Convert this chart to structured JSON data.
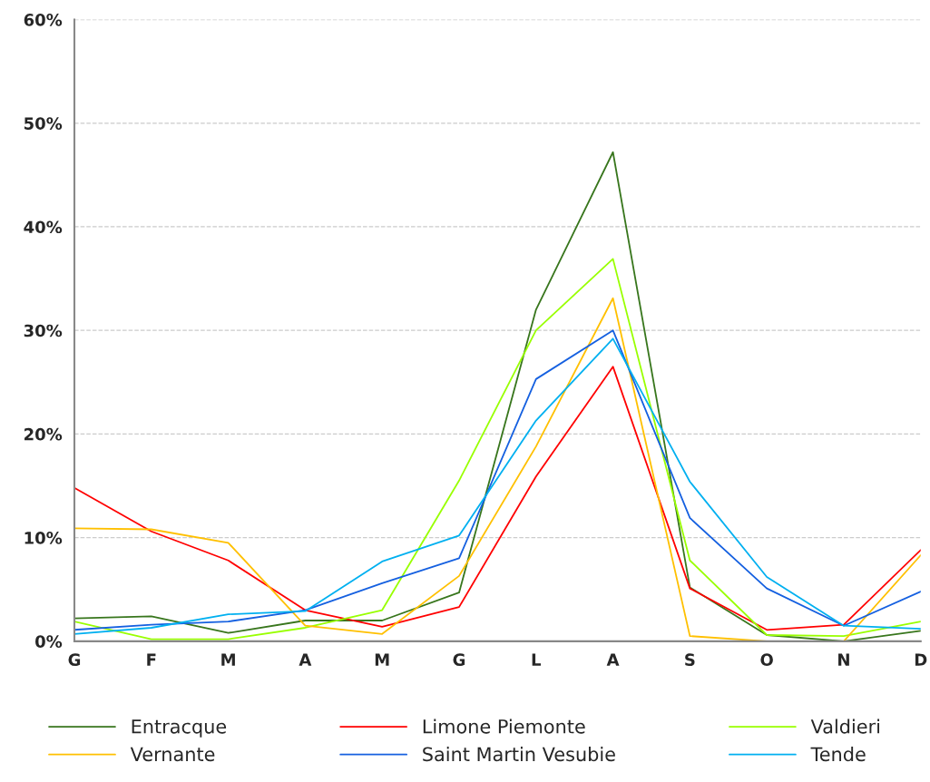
{
  "chart_data": {
    "type": "line",
    "categories": [
      "G",
      "F",
      "M",
      "A",
      "M",
      "G",
      "L",
      "A",
      "S",
      "O",
      "N",
      "D"
    ],
    "series": [
      {
        "name": "Entracque",
        "color": "#38761d",
        "values": [
          2.2,
          2.4,
          0.8,
          2.0,
          2.0,
          4.7,
          32.0,
          47.2,
          5.2,
          0.6,
          0.0,
          1.0
        ]
      },
      {
        "name": "Limone Piemonte",
        "color": "#ff0000",
        "values": [
          14.8,
          10.6,
          7.8,
          3.0,
          1.4,
          3.3,
          15.9,
          26.5,
          5.1,
          1.1,
          1.6,
          8.8
        ]
      },
      {
        "name": "Valdieri",
        "color": "#99ff00",
        "values": [
          1.9,
          0.2,
          0.2,
          1.3,
          3.0,
          15.5,
          30.0,
          36.9,
          7.8,
          0.6,
          0.5,
          1.9
        ]
      },
      {
        "name": "Vernante",
        "color": "#ffc000",
        "values": [
          10.9,
          10.8,
          9.5,
          1.5,
          0.7,
          6.3,
          18.8,
          33.1,
          0.5,
          0.0,
          0.0,
          8.3
        ]
      },
      {
        "name": "Saint Martin Vesubie",
        "color": "#1560e0",
        "values": [
          1.1,
          1.6,
          1.9,
          3.0,
          5.6,
          8.0,
          25.3,
          30.0,
          11.9,
          5.1,
          1.5,
          4.8
        ]
      },
      {
        "name": "Tende",
        "color": "#00b0f0",
        "values": [
          0.7,
          1.3,
          2.6,
          2.9,
          7.7,
          10.2,
          21.3,
          29.2,
          15.4,
          6.2,
          1.5,
          1.2
        ]
      }
    ],
    "ylim": [
      0,
      60
    ],
    "yticks": [
      {
        "value": 0,
        "label": "0%"
      },
      {
        "value": 10,
        "label": "10%"
      },
      {
        "value": 20,
        "label": "20%"
      },
      {
        "value": 30,
        "label": "30%"
      },
      {
        "value": 40,
        "label": "40%"
      },
      {
        "value": 50,
        "label": "50%"
      },
      {
        "value": 60,
        "label": "60%"
      }
    ],
    "grid": "y",
    "legend": "bottom",
    "marker": "none",
    "line_style": "solid"
  }
}
